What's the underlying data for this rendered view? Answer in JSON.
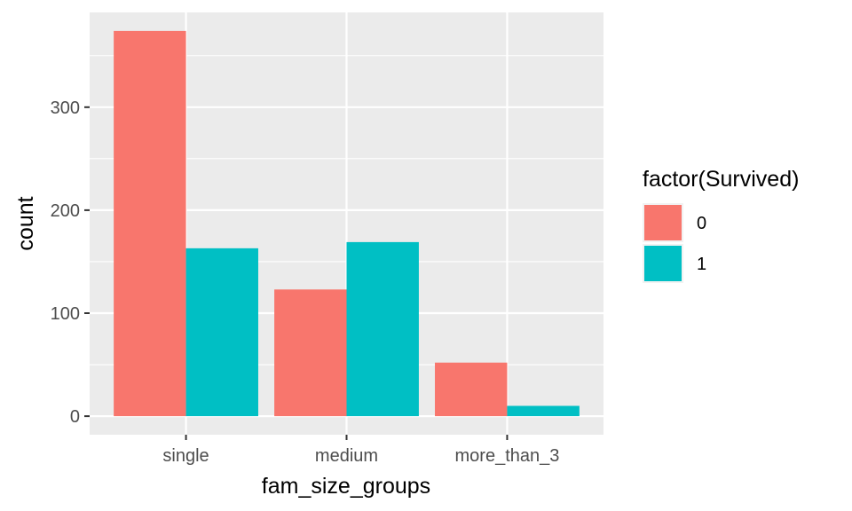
{
  "chart_data": {
    "type": "bar",
    "title": "",
    "xlabel": "fam_size_groups",
    "ylabel": "count",
    "categories": [
      "single",
      "medium",
      "more_than_3"
    ],
    "series": [
      {
        "name": "0",
        "color": "#F8766D",
        "values": [
          374,
          123,
          52
        ]
      },
      {
        "name": "1",
        "color": "#00BFC4",
        "values": [
          163,
          169,
          10
        ]
      }
    ],
    "ylim": [
      -18,
      392
    ],
    "y_ticks": [
      0,
      100,
      200,
      300
    ],
    "y_tick_labels": [
      "0",
      "100",
      "200",
      "300"
    ],
    "grid": true,
    "panel_background": "#EBEBEB",
    "bar_colors": {
      "0": "#F8766D",
      "1": "#00BFC4"
    },
    "legend": {
      "title": "factor(Survived)",
      "position": "right",
      "entries": [
        "0",
        "1"
      ]
    }
  }
}
